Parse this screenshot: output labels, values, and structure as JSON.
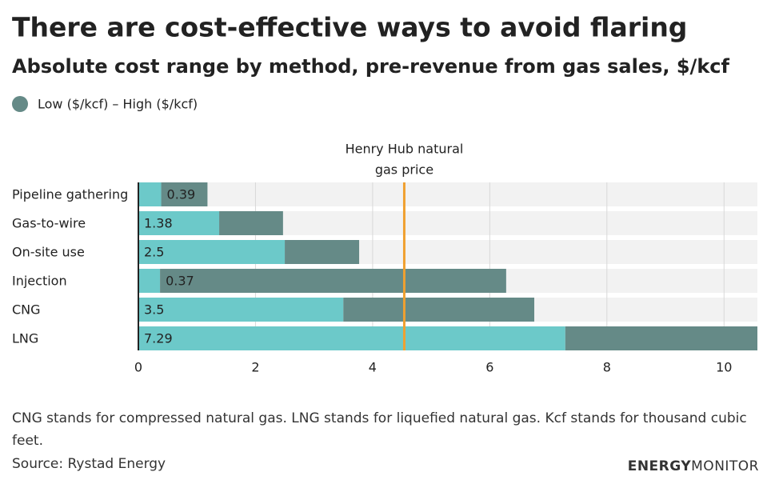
{
  "chart_data": {
    "type": "range_bar",
    "title": "There are cost-effective ways to avoid flaring",
    "subtitle": "Absolute cost range by method, pre-revenue from gas sales, $/kcf",
    "legend": "Low ($/kcf) – High ($/kcf)",
    "categories": [
      "Pipeline gathering",
      "Gas-to-wire",
      "On-site use",
      "Injection",
      "CNG",
      "LNG"
    ],
    "series": [
      {
        "name": "Low",
        "color": "#6cc9c9",
        "values": [
          0.39,
          1.38,
          2.5,
          0.37,
          3.5,
          7.29
        ]
      },
      {
        "name": "High",
        "color": "#658a87",
        "values": [
          1.18,
          2.47,
          3.77,
          6.28,
          6.76,
          10.57
        ]
      }
    ],
    "xlim": [
      0,
      10.57
    ],
    "xticks": [
      0,
      2,
      4,
      6,
      8,
      10
    ],
    "grid": true,
    "reference_line": {
      "label": [
        "Henry Hub natural",
        "gas price"
      ],
      "value": 4.54,
      "color": "#f0a030"
    },
    "note": "CNG stands for compressed natural gas. LNG stands for liquefied natural gas. Kcf stands for thousand cubic feet.",
    "source": "Source: Rystad Energy",
    "brand": [
      "ENERGY",
      "MONITOR"
    ]
  }
}
